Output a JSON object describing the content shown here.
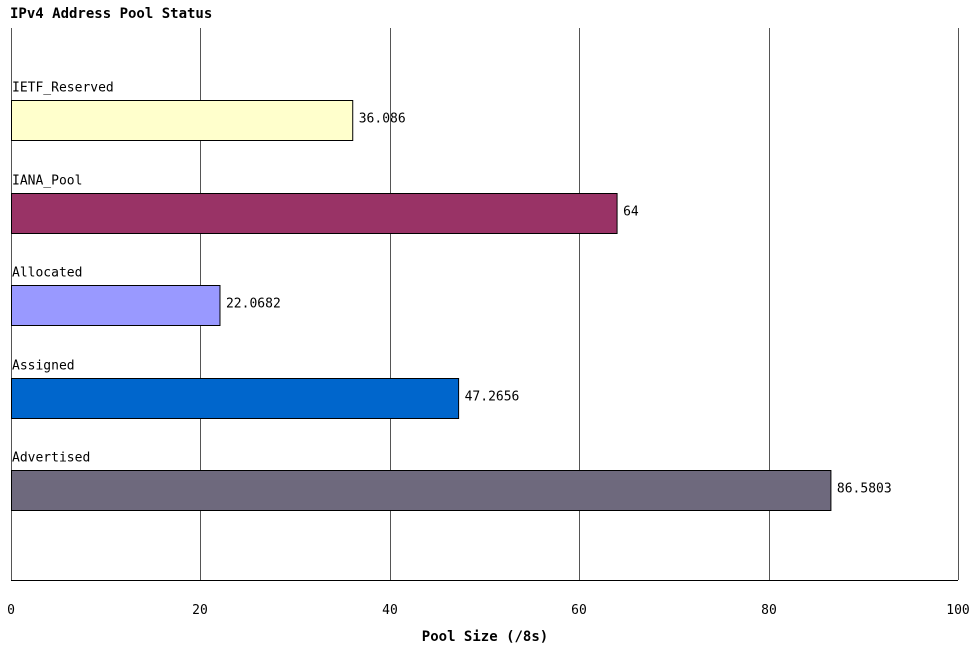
{
  "chart_data": {
    "type": "bar",
    "orientation": "horizontal",
    "title": "IPv4 Address Pool Status",
    "xlabel": "Pool Size (/8s)",
    "ylabel": "",
    "xlim": [
      0,
      100
    ],
    "xticks": [
      "0",
      "20",
      "40",
      "60",
      "80",
      "100"
    ],
    "grid": true,
    "categories": [
      "IETF_Reserved",
      "IANA_Pool",
      "Allocated",
      "Assigned",
      "Advertised"
    ],
    "values": [
      36.086,
      64,
      22.0682,
      47.2656,
      86.5803
    ],
    "value_labels": [
      "36.086",
      "64",
      "22.0682",
      "47.2656",
      "86.5803"
    ],
    "colors": [
      "#ffffcc",
      "#993366",
      "#9999ff",
      "#0066cc",
      "#6e697d"
    ]
  }
}
